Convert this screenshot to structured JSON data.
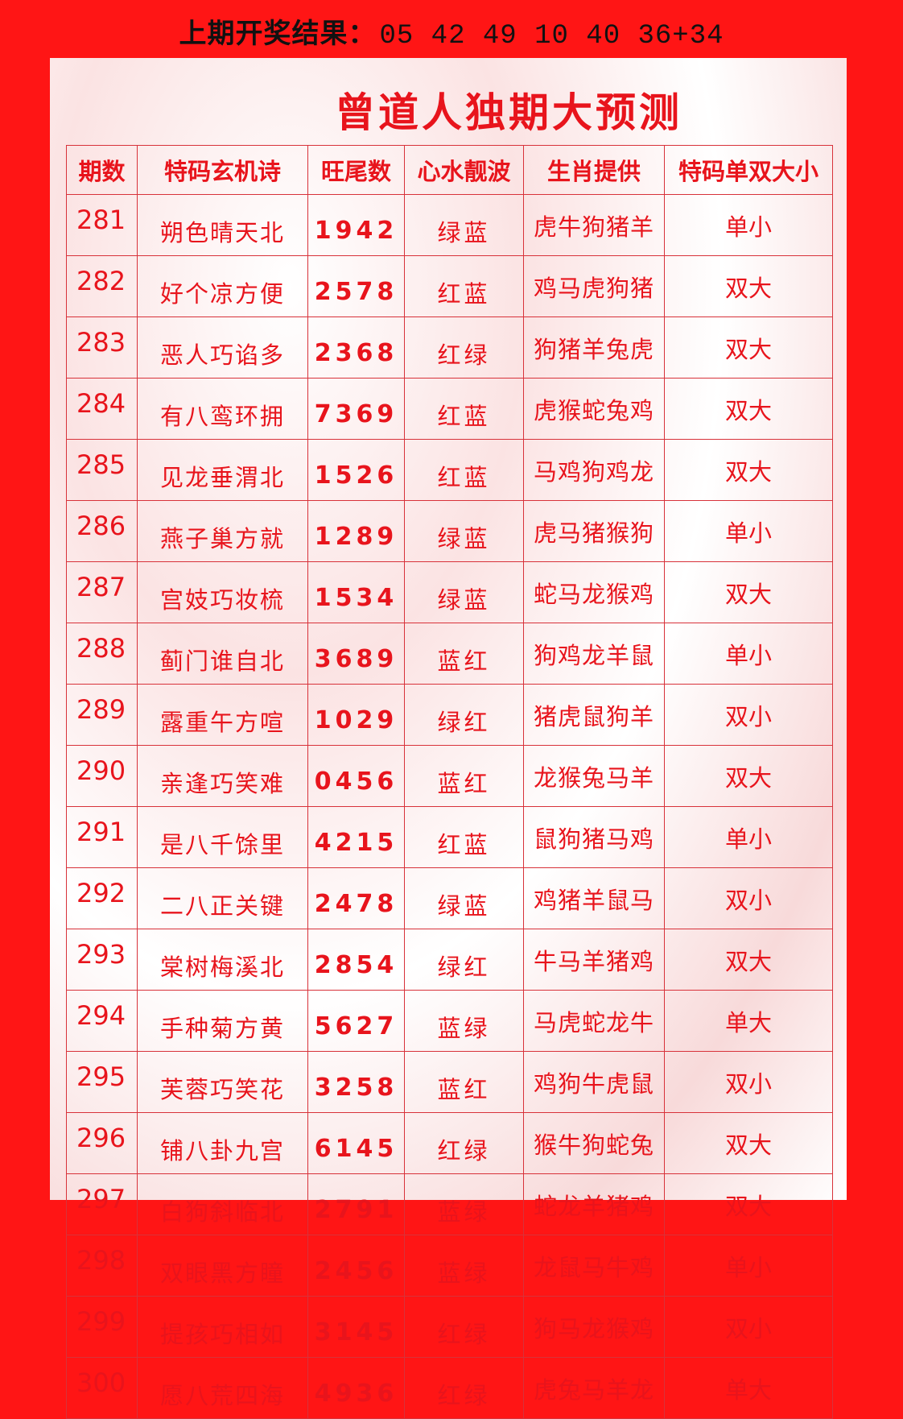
{
  "header": {
    "label": "上期开奖结果：",
    "numbers": "05 42 49 10 40 36+34"
  },
  "title": "曾道人独期大预测",
  "colors": {
    "background": "#ff1515",
    "text": "#e8141c"
  },
  "table": {
    "columns": [
      "期数",
      "特码玄机诗",
      "旺尾数",
      "心水靓波",
      "生肖提供",
      "特码单双大小"
    ],
    "rows": [
      [
        "281",
        "朔色晴天北",
        "1942",
        "绿蓝",
        "虎牛狗猪羊",
        "单小"
      ],
      [
        "282",
        "好个凉方便",
        "2578",
        "红蓝",
        "鸡马虎狗猪",
        "双大"
      ],
      [
        "283",
        "恶人巧谄多",
        "2368",
        "红绿",
        "狗猪羊兔虎",
        "双大"
      ],
      [
        "284",
        "有八鸾环拥",
        "7369",
        "红蓝",
        "虎猴蛇兔鸡",
        "双大"
      ],
      [
        "285",
        "见龙垂渭北",
        "1526",
        "红蓝",
        "马鸡狗鸡龙",
        "双大"
      ],
      [
        "286",
        "燕子巢方就",
        "1289",
        "绿蓝",
        "虎马猪猴狗",
        "单小"
      ],
      [
        "287",
        "宫妓巧妆梳",
        "1534",
        "绿蓝",
        "蛇马龙猴鸡",
        "双大"
      ],
      [
        "288",
        "蓟门谁自北",
        "3689",
        "蓝红",
        "狗鸡龙羊鼠",
        "单小"
      ],
      [
        "289",
        "露重午方喧",
        "1029",
        "绿红",
        "猪虎鼠狗羊",
        "双小"
      ],
      [
        "290",
        "亲逢巧笑难",
        "0456",
        "蓝红",
        "龙猴兔马羊",
        "双大"
      ],
      [
        "291",
        "是八千馀里",
        "4215",
        "红蓝",
        "鼠狗猪马鸡",
        "单小"
      ],
      [
        "292",
        "二八正关键",
        "2478",
        "绿蓝",
        "鸡猪羊鼠马",
        "双小"
      ],
      [
        "293",
        "棠树梅溪北",
        "2854",
        "绿红",
        "牛马羊猪鸡",
        "双大"
      ],
      [
        "294",
        "手种菊方黄",
        "5627",
        "蓝绿",
        "马虎蛇龙牛",
        "单大"
      ],
      [
        "295",
        "芙蓉巧笑花",
        "3258",
        "蓝红",
        "鸡狗牛虎鼠",
        "双小"
      ],
      [
        "296",
        "铺八卦九宫",
        "6145",
        "红绿",
        "猴牛狗蛇兔",
        "双大"
      ],
      [
        "297",
        "白狗斜临北",
        "2791",
        "蓝绿",
        "蛇龙羊猪鸡",
        "双大"
      ],
      [
        "298",
        "双眼黑方瞳",
        "2456",
        "蓝绿",
        "龙鼠马牛鸡",
        "单小"
      ],
      [
        "299",
        "提孩巧相如",
        "3145",
        "红绿",
        "狗马龙猴鸡",
        "双小"
      ],
      [
        "300",
        "愿八荒四海",
        "4936",
        "红绿",
        "虎兔马羊龙",
        "单大"
      ]
    ]
  }
}
